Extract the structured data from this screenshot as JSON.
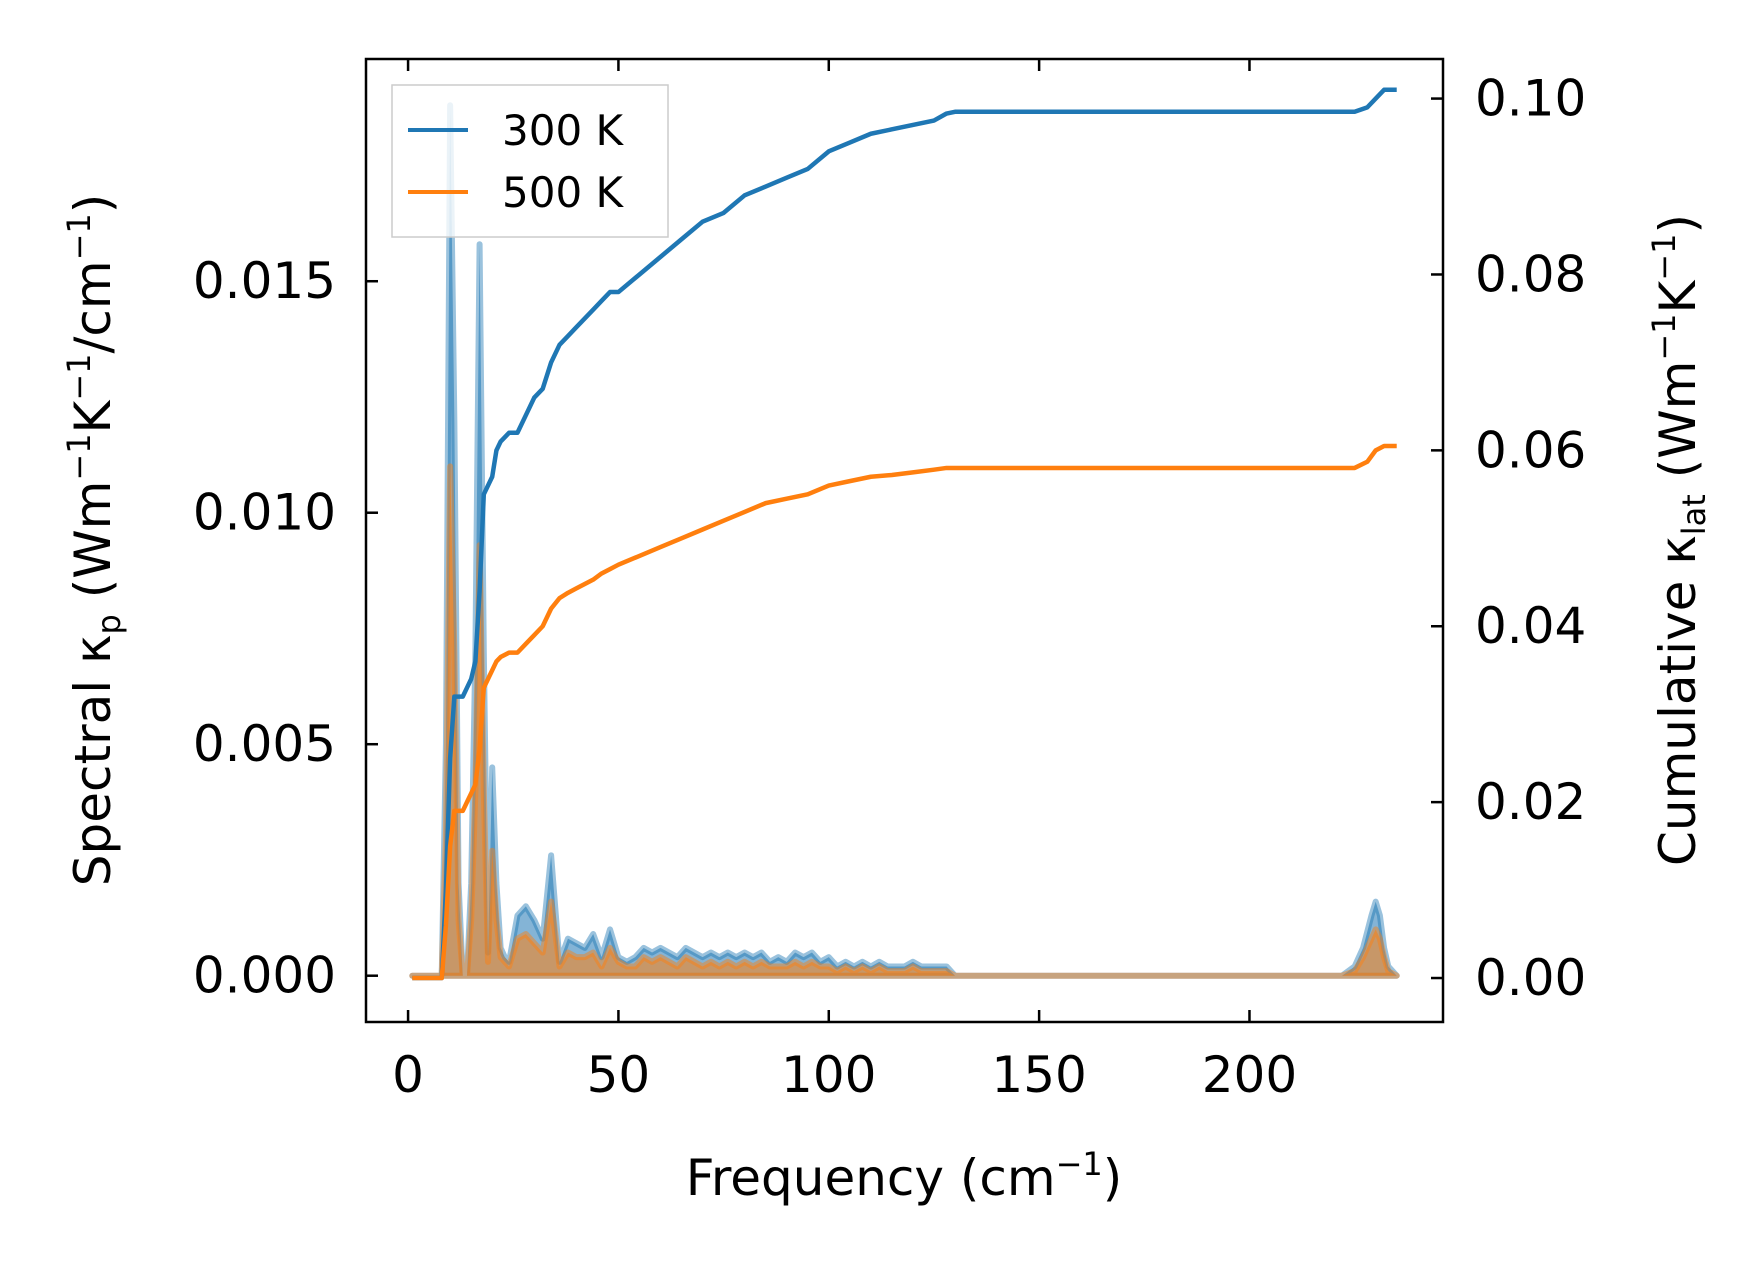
{
  "chart_data": {
    "type": "line",
    "xlabel": "Frequency (cm",
    "xlabel_sup": "−1",
    "xlabel_end": ")",
    "ylabel_left": {
      "a": "Spectral κ",
      "sub": "p",
      "b": " (Wm",
      "s1": "−1",
      "c": "K",
      "s2": "−1",
      "d": "/cm",
      "s3": "−1",
      "e": ")"
    },
    "ylabel_right": {
      "a": "Cumulative κ",
      "sub": "lat",
      "b": " (Wm",
      "s1": "−1",
      "c": "K",
      "s2": "−1",
      "e": ")"
    },
    "xlim": [
      -10,
      246
    ],
    "ylim_left": [
      -0.001,
      0.0198
    ],
    "ylim_right": [
      -0.005,
      0.1045
    ],
    "xticks": [
      0,
      50,
      100,
      150,
      200
    ],
    "xtick_labels": [
      "0",
      "50",
      "100",
      "150",
      "200"
    ],
    "yticks_left": [
      0.0,
      0.005,
      0.01,
      0.015
    ],
    "ytick_labels_left": [
      "0.000",
      "0.005",
      "0.010",
      "0.015"
    ],
    "yticks_right": [
      0.0,
      0.02,
      0.04,
      0.06,
      0.08,
      0.1
    ],
    "ytick_labels_right": [
      "0.00",
      "0.02",
      "0.04",
      "0.06",
      "0.08",
      "0.10"
    ],
    "legend_placement": "top-left",
    "series": [
      {
        "name": "300 K",
        "color": "#1f77b4",
        "spectral": {
          "x": [
            1,
            7,
            8,
            9,
            10,
            11,
            12,
            13,
            14,
            15,
            16,
            17,
            18,
            19,
            20,
            21,
            22,
            23,
            24,
            26,
            28,
            30,
            32,
            34,
            36,
            38,
            40,
            42,
            44,
            46,
            48,
            50,
            52,
            54,
            56,
            58,
            60,
            62,
            64,
            66,
            68,
            70,
            72,
            74,
            76,
            78,
            80,
            82,
            84,
            86,
            88,
            90,
            92,
            94,
            96,
            98,
            100,
            102,
            104,
            106,
            108,
            110,
            112,
            114,
            116,
            118,
            120,
            122,
            124,
            126,
            128,
            130,
            135,
            140,
            150,
            160,
            180,
            200,
            215,
            222,
            225,
            227,
            229,
            230,
            231,
            232,
            233,
            235
          ],
          "y": [
            0.0,
            0.0,
            0.0,
            0.005,
            0.0188,
            0.012,
            0.002,
            0.0,
            0.0,
            0.002,
            0.007,
            0.0158,
            0.007,
            0.0005,
            0.0045,
            0.002,
            0.0006,
            0.0004,
            0.0003,
            0.0013,
            0.0015,
            0.0012,
            0.0008,
            0.0026,
            0.0003,
            0.0008,
            0.0007,
            0.0006,
            0.0009,
            0.0004,
            0.001,
            0.0004,
            0.0003,
            0.0004,
            0.0006,
            0.0005,
            0.0006,
            0.0005,
            0.0004,
            0.0006,
            0.0005,
            0.0004,
            0.0005,
            0.0004,
            0.0005,
            0.0004,
            0.0005,
            0.0004,
            0.0005,
            0.0003,
            0.0004,
            0.0003,
            0.0005,
            0.0004,
            0.0005,
            0.0003,
            0.0004,
            0.0002,
            0.0003,
            0.0002,
            0.0003,
            0.0002,
            0.0003,
            0.0002,
            0.0002,
            0.0002,
            0.0003,
            0.0002,
            0.0002,
            0.0002,
            0.0002,
            0.0,
            0.0,
            0.0,
            0.0,
            0.0,
            0.0,
            0.0,
            0.0,
            0.0,
            0.0002,
            0.0006,
            0.0013,
            0.0016,
            0.0013,
            0.0006,
            0.0002,
            0.0
          ]
        },
        "cumulative": {
          "x": [
            1,
            7,
            8,
            9,
            10,
            11,
            12,
            13,
            14,
            15,
            16,
            17,
            18,
            19,
            20,
            21,
            22,
            24,
            26,
            28,
            30,
            32,
            34,
            36,
            38,
            40,
            42,
            44,
            46,
            48,
            50,
            55,
            60,
            65,
            70,
            75,
            80,
            85,
            90,
            95,
            100,
            105,
            110,
            115,
            120,
            125,
            128,
            130,
            150,
            180,
            200,
            222,
            225,
            228,
            230,
            232,
            235
          ],
          "y": [
            0.0,
            0.0,
            0.0,
            0.01,
            0.025,
            0.032,
            0.032,
            0.032,
            0.033,
            0.034,
            0.036,
            0.044,
            0.055,
            0.056,
            0.057,
            0.06,
            0.061,
            0.062,
            0.062,
            0.064,
            0.066,
            0.067,
            0.07,
            0.072,
            0.073,
            0.074,
            0.075,
            0.076,
            0.077,
            0.078,
            0.078,
            0.08,
            0.082,
            0.084,
            0.086,
            0.087,
            0.089,
            0.09,
            0.091,
            0.092,
            0.094,
            0.095,
            0.096,
            0.0965,
            0.097,
            0.0975,
            0.0983,
            0.0985,
            0.0985,
            0.0985,
            0.0985,
            0.0985,
            0.0985,
            0.099,
            0.1,
            0.101,
            0.101
          ]
        }
      },
      {
        "name": "500 K",
        "color": "#ff7f0e",
        "spectral": {
          "x": [
            1,
            7,
            8,
            9,
            10,
            11,
            12,
            13,
            14,
            15,
            16,
            17,
            18,
            19,
            20,
            21,
            22,
            23,
            24,
            26,
            28,
            30,
            32,
            34,
            36,
            38,
            40,
            42,
            44,
            46,
            48,
            50,
            52,
            54,
            56,
            58,
            60,
            62,
            64,
            66,
            68,
            70,
            72,
            74,
            76,
            78,
            80,
            82,
            84,
            86,
            88,
            90,
            92,
            94,
            96,
            98,
            100,
            102,
            104,
            106,
            108,
            110,
            112,
            114,
            116,
            118,
            120,
            122,
            124,
            126,
            128,
            130,
            135,
            140,
            150,
            160,
            180,
            200,
            215,
            222,
            225,
            227,
            229,
            230,
            231,
            232,
            233,
            235
          ],
          "y": [
            0.0,
            0.0,
            0.0,
            0.003,
            0.011,
            0.007,
            0.0012,
            0.0,
            0.0,
            0.0012,
            0.004,
            0.0093,
            0.004,
            0.0003,
            0.0027,
            0.0012,
            0.0004,
            0.0003,
            0.0002,
            0.0008,
            0.0009,
            0.0007,
            0.0005,
            0.0016,
            0.0002,
            0.0005,
            0.0004,
            0.0004,
            0.0005,
            0.0002,
            0.0006,
            0.0003,
            0.0002,
            0.0002,
            0.0004,
            0.0003,
            0.0004,
            0.0003,
            0.0002,
            0.0004,
            0.0003,
            0.0002,
            0.0003,
            0.0002,
            0.0003,
            0.0002,
            0.0003,
            0.0002,
            0.0003,
            0.0002,
            0.0002,
            0.0002,
            0.0003,
            0.0002,
            0.0003,
            0.0002,
            0.0002,
            0.0001,
            0.0002,
            0.0001,
            0.0002,
            0.0001,
            0.0002,
            0.0001,
            0.0001,
            0.0001,
            0.0002,
            0.0001,
            0.0001,
            0.0001,
            0.0001,
            0.0,
            0.0,
            0.0,
            0.0,
            0.0,
            0.0,
            0.0,
            0.0,
            0.0,
            0.0001,
            0.0004,
            0.0008,
            0.001,
            0.0008,
            0.0004,
            0.0001,
            0.0
          ]
        },
        "cumulative": {
          "x": [
            1,
            7,
            8,
            9,
            10,
            11,
            12,
            13,
            14,
            15,
            16,
            17,
            18,
            19,
            20,
            21,
            22,
            24,
            26,
            28,
            30,
            32,
            34,
            36,
            38,
            40,
            42,
            44,
            46,
            48,
            50,
            55,
            60,
            65,
            70,
            75,
            80,
            85,
            90,
            95,
            100,
            105,
            110,
            115,
            120,
            125,
            128,
            130,
            150,
            180,
            200,
            222,
            225,
            228,
            230,
            232,
            235
          ],
          "y": [
            0.0,
            0.0,
            0.0,
            0.006,
            0.015,
            0.019,
            0.019,
            0.019,
            0.02,
            0.021,
            0.022,
            0.026,
            0.033,
            0.034,
            0.035,
            0.036,
            0.0365,
            0.037,
            0.037,
            0.038,
            0.039,
            0.04,
            0.042,
            0.0432,
            0.0438,
            0.0443,
            0.0448,
            0.0453,
            0.046,
            0.0465,
            0.047,
            0.048,
            0.049,
            0.05,
            0.051,
            0.052,
            0.053,
            0.054,
            0.0545,
            0.055,
            0.056,
            0.0565,
            0.057,
            0.0572,
            0.0575,
            0.0578,
            0.058,
            0.058,
            0.058,
            0.058,
            0.058,
            0.058,
            0.058,
            0.0587,
            0.06,
            0.0605,
            0.0605
          ]
        }
      }
    ]
  }
}
